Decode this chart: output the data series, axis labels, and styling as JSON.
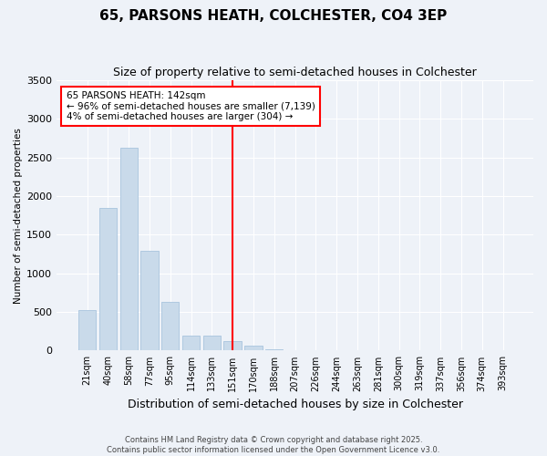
{
  "title": "65, PARSONS HEATH, COLCHESTER, CO4 3EP",
  "subtitle": "Size of property relative to semi-detached houses in Colchester",
  "xlabel": "Distribution of semi-detached houses by size in Colchester",
  "ylabel": "Number of semi-detached properties",
  "categories": [
    "21sqm",
    "40sqm",
    "58sqm",
    "77sqm",
    "95sqm",
    "114sqm",
    "133sqm",
    "151sqm",
    "170sqm",
    "188sqm",
    "207sqm",
    "226sqm",
    "244sqm",
    "263sqm",
    "281sqm",
    "300sqm",
    "319sqm",
    "337sqm",
    "356sqm",
    "374sqm",
    "393sqm"
  ],
  "values": [
    520,
    1850,
    2630,
    1290,
    630,
    190,
    190,
    120,
    60,
    20,
    10,
    5,
    5,
    3,
    2,
    2,
    2,
    1,
    1,
    1,
    1
  ],
  "bar_color": "#c9daea",
  "bar_edge_color": "#a8c4de",
  "vline_index": 7,
  "vline_color": "red",
  "annotation_title": "65 PARSONS HEATH: 142sqm",
  "annotation_line1": "← 96% of semi-detached houses are smaller (7,139)",
  "annotation_line2": "4% of semi-detached houses are larger (304) →",
  "annotation_box_color": "white",
  "annotation_box_edge_color": "red",
  "ylim": [
    0,
    3500
  ],
  "yticks": [
    0,
    500,
    1000,
    1500,
    2000,
    2500,
    3000,
    3500
  ],
  "background_color": "#eef2f8",
  "footnote1": "Contains HM Land Registry data © Crown copyright and database right 2025.",
  "footnote2": "Contains public sector information licensed under the Open Government Licence v3.0.",
  "title_fontsize": 11,
  "subtitle_fontsize": 9,
  "bar_width": 0.85
}
